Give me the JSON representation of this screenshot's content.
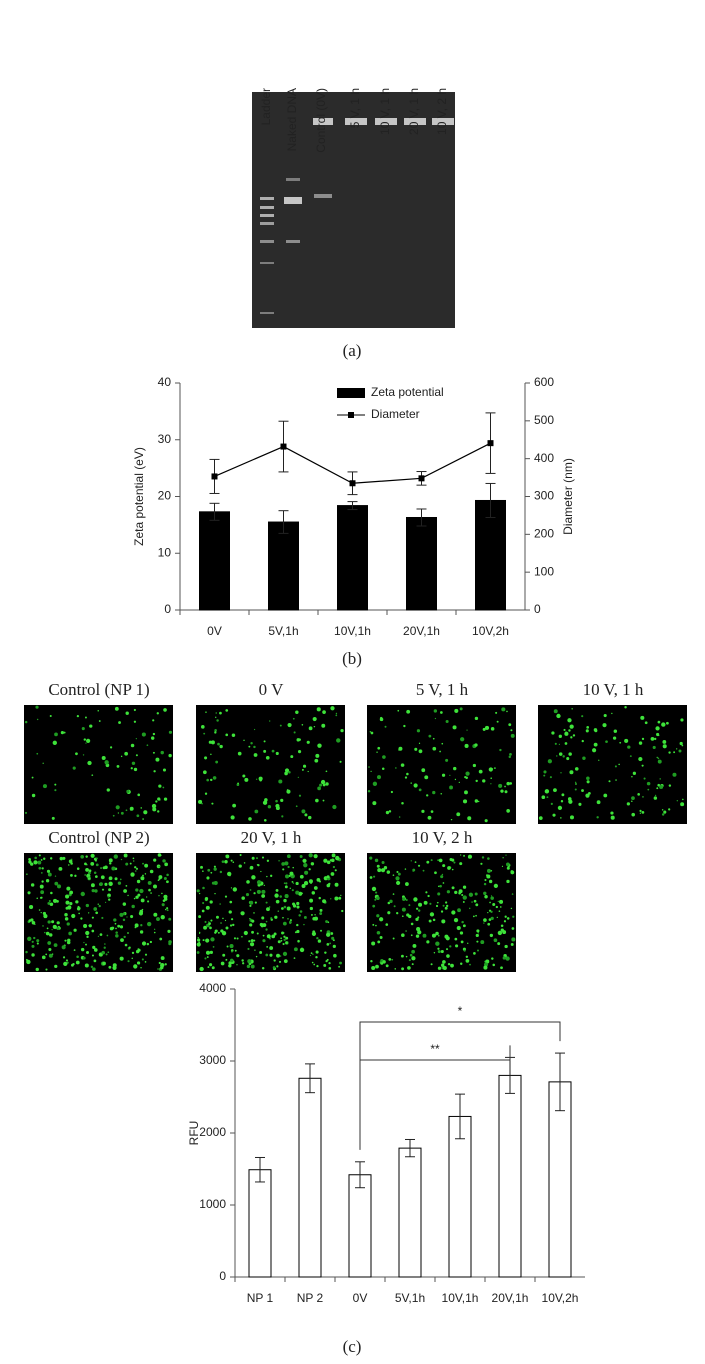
{
  "gel": {
    "lanes": [
      "Ladder",
      "Naked DNA",
      "Control (0V)",
      "5 V, 1 h",
      "10 V, 1 h",
      "20 V, 1 h",
      "10 V, 2 h"
    ]
  },
  "panel_labels": [
    "(a)",
    "(b)",
    "(c)"
  ],
  "micrographs": {
    "titles": [
      "Control (NP 1)",
      "0 V",
      "5 V, 1 h",
      "10 V, 1 h",
      "Control (NP 2)",
      "20 V, 1 h",
      "10 V, 2 h"
    ]
  },
  "chart_data": [
    {
      "type": "bar",
      "categories": [
        "0V",
        "5V,1h",
        "10V,1h",
        "20V,1h",
        "10V,2h"
      ],
      "series": [
        {
          "name": "Zeta potential",
          "type": "bar",
          "color": "#000000",
          "values": [
            17.3,
            15.5,
            18.4,
            16.3,
            19.3
          ],
          "errors": [
            1.5,
            2.0,
            0.7,
            1.5,
            3.0
          ]
        },
        {
          "name": "Diameter",
          "type": "line",
          "axis": "y2",
          "color": "#000000",
          "values": [
            353,
            432,
            335,
            348,
            441
          ],
          "errors": [
            45,
            67,
            30,
            18,
            80
          ]
        }
      ],
      "ylim": [
        0,
        40
      ],
      "yticks": [
        0,
        10,
        20,
        30,
        40
      ],
      "y2lim": [
        0,
        600
      ],
      "y2ticks": [
        0,
        100,
        200,
        300,
        400,
        500,
        600
      ],
      "ylabel": "Zeta potential (eV)",
      "y2label": "Diameter (nm)",
      "legend": "top"
    },
    {
      "type": "bar",
      "categories": [
        "NP 1",
        "NP 2",
        "0V",
        "5V,1h",
        "10V,1h",
        "20V,1h",
        "10V,2h"
      ],
      "series": [
        {
          "type": "bar",
          "color": "#ffffff",
          "values": [
            1490,
            2760,
            1420,
            1790,
            2230,
            2800,
            2710
          ],
          "errors": [
            170,
            200,
            180,
            120,
            310,
            250,
            400
          ]
        }
      ],
      "ylim": [
        0,
        4000
      ],
      "yticks": [
        0,
        1000,
        2000,
        3000,
        4000
      ],
      "ylabel": "RFU",
      "annotations": [
        {
          "text": "*",
          "between": [
            "0V",
            "10V,2h"
          ]
        },
        {
          "text": "**",
          "between": [
            "0V",
            "20V,1h"
          ]
        }
      ]
    }
  ]
}
